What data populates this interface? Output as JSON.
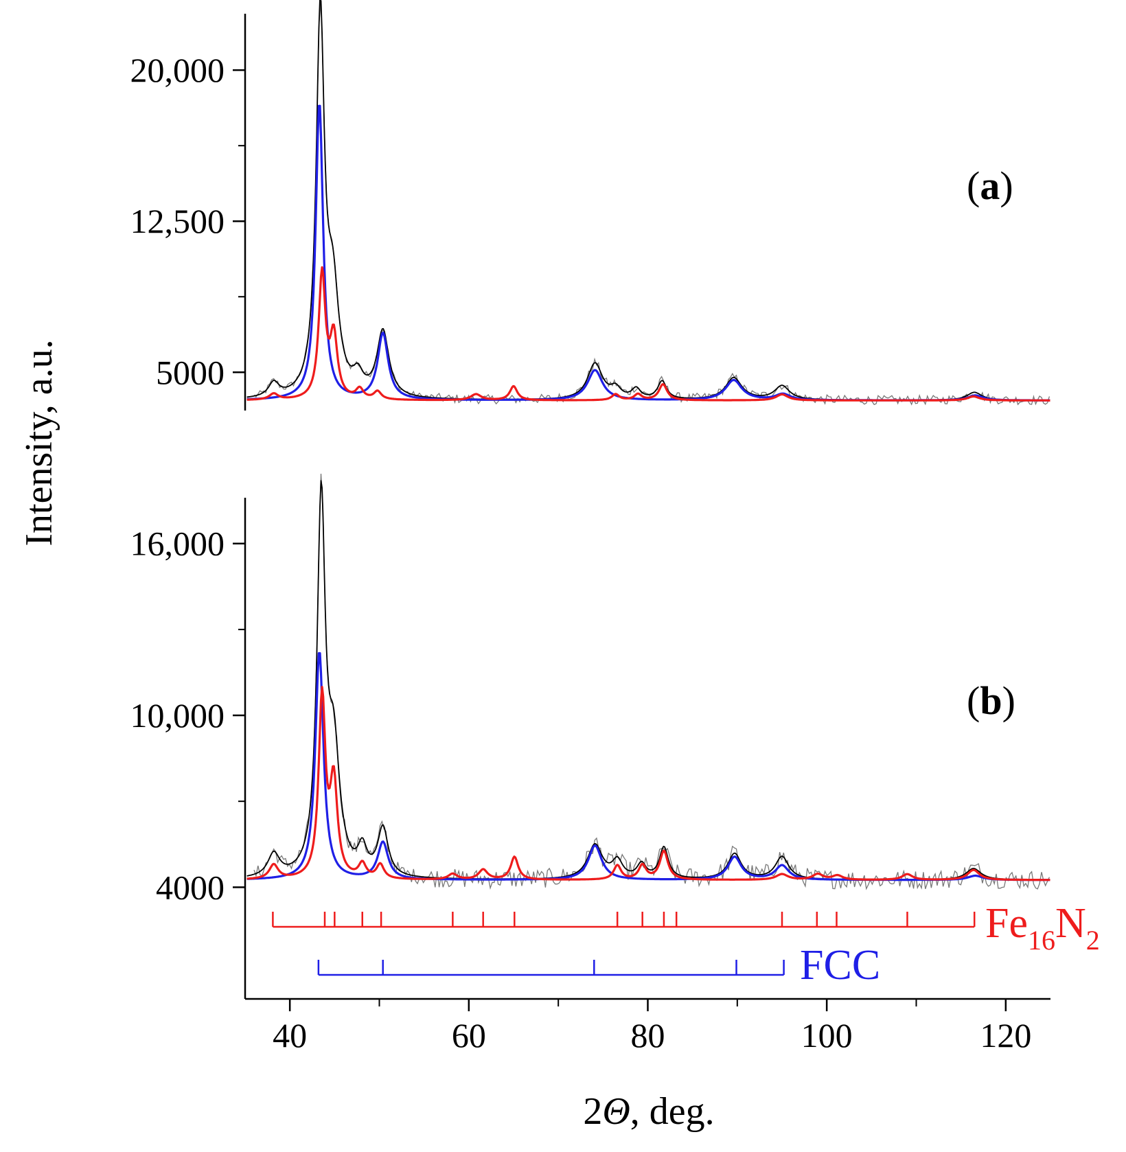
{
  "chart_data": {
    "type": "line",
    "xlabel_prefix": "2",
    "xlabel_symbol": "Θ",
    "xlabel_suffix": ", deg.",
    "ylabel": "Intensity, a.u.",
    "xlim": [
      35,
      125
    ],
    "x_ticks": [
      40,
      60,
      80,
      100,
      120
    ],
    "x_tick_labels": [
      "40",
      "60",
      "80",
      "100",
      "120"
    ],
    "colors": {
      "observed": "#000000",
      "noise": "#777777",
      "fcc": "#1f1fe6",
      "fe16n2": "#ee1c1c"
    },
    "panels": [
      {
        "id": "a",
        "label_open": "(",
        "label_letter": "a",
        "label_close": ")",
        "ylim": [
          3100,
          22800
        ],
        "y_ticks": [
          5000,
          12500,
          20000
        ],
        "y_tick_labels": [
          "5000",
          "12,500",
          "20,000"
        ],
        "baseline": 3600,
        "series": [
          {
            "name": "observed",
            "color": "#000000",
            "peaks": [
              [
                38.2,
                700,
                0.7
              ],
              [
                43.4,
                18800,
                0.55
              ],
              [
                44.8,
                5000,
                0.8
              ],
              [
                47.6,
                900,
                0.7
              ],
              [
                50.4,
                3300,
                0.8
              ],
              [
                74.1,
                1800,
                1.0
              ],
              [
                76.4,
                500,
                0.7
              ],
              [
                78.7,
                500,
                0.6
              ],
              [
                81.6,
                900,
                0.6
              ],
              [
                89.6,
                1100,
                1.1
              ],
              [
                95.0,
                700,
                1.0
              ],
              [
                116.5,
                400,
                1.0
              ]
            ]
          },
          {
            "name": "FCC",
            "color": "#1f1fe6",
            "peaks": [
              [
                43.3,
                14800,
                0.5
              ],
              [
                50.4,
                3300,
                0.7
              ],
              [
                74.1,
                1500,
                1.0
              ],
              [
                89.6,
                1000,
                1.1
              ],
              [
                95.1,
                300,
                1.0
              ],
              [
                116.6,
                250,
                1.0
              ]
            ]
          },
          {
            "name": "Fe16N2",
            "color": "#ee1c1c",
            "peaks": [
              [
                38.2,
                300,
                0.6
              ],
              [
                43.6,
                6200,
                0.45
              ],
              [
                44.9,
                3100,
                0.5
              ],
              [
                47.8,
                500,
                0.5
              ],
              [
                49.8,
                400,
                0.5
              ],
              [
                60.8,
                300,
                0.7
              ],
              [
                65.0,
                700,
                0.5
              ],
              [
                76.4,
                300,
                0.5
              ],
              [
                78.9,
                300,
                0.5
              ],
              [
                81.7,
                800,
                0.55
              ],
              [
                95.0,
                300,
                0.8
              ],
              [
                116.4,
                200,
                0.8
              ]
            ]
          }
        ]
      },
      {
        "id": "b",
        "label_open": "(",
        "label_letter": "b",
        "label_close": ")",
        "ylim": [
          100,
          17600
        ],
        "y_ticks": [
          4000,
          10000,
          16000
        ],
        "y_tick_labels": [
          "4000",
          "10,000",
          "16,000"
        ],
        "baseline": 4250,
        "series": [
          {
            "name": "observed",
            "color": "#000000",
            "peaks": [
              [
                38.2,
                800,
                0.8
              ],
              [
                43.5,
                12900,
                0.55
              ],
              [
                44.9,
                4200,
                0.8
              ],
              [
                48.1,
                900,
                0.6
              ],
              [
                50.4,
                1700,
                0.7
              ],
              [
                74.1,
                1200,
                1.0
              ],
              [
                76.6,
                600,
                0.7
              ],
              [
                79.3,
                500,
                0.6
              ],
              [
                81.8,
                1100,
                0.6
              ],
              [
                89.7,
                900,
                0.9
              ],
              [
                95.0,
                800,
                0.9
              ],
              [
                116.4,
                400,
                1.0
              ]
            ]
          },
          {
            "name": "FCC",
            "color": "#1f1fe6",
            "peaks": [
              [
                43.3,
                8000,
                0.55
              ],
              [
                50.4,
                1300,
                0.7
              ],
              [
                74.1,
                1200,
                0.9
              ],
              [
                89.7,
                800,
                0.9
              ],
              [
                95.0,
                500,
                0.9
              ],
              [
                116.6,
                150,
                1.0
              ]
            ]
          },
          {
            "name": "Fe16N2",
            "color": "#ee1c1c",
            "peaks": [
              [
                38.2,
                500,
                0.6
              ],
              [
                43.6,
                6300,
                0.45
              ],
              [
                44.9,
                3300,
                0.5
              ],
              [
                48.1,
                500,
                0.5
              ],
              [
                50.1,
                500,
                0.5
              ],
              [
                58.2,
                200,
                0.6
              ],
              [
                61.6,
                350,
                0.6
              ],
              [
                65.1,
                800,
                0.5
              ],
              [
                76.6,
                500,
                0.5
              ],
              [
                79.4,
                500,
                0.5
              ],
              [
                81.8,
                1000,
                0.55
              ],
              [
                95.0,
                200,
                0.8
              ],
              [
                99.0,
                200,
                0.7
              ],
              [
                101.2,
                150,
                0.7
              ],
              [
                109.0,
                200,
                0.7
              ],
              [
                116.4,
                350,
                0.8
              ]
            ]
          }
        ]
      }
    ],
    "reference_markers": [
      {
        "name": "Fe16N2",
        "label_base_1": "Fe",
        "label_sub_1": "16",
        "label_base_2": "N",
        "label_sub_2": "2",
        "color": "#ee1c1c",
        "positions": [
          38.1,
          43.9,
          45.0,
          48.1,
          50.2,
          58.2,
          61.6,
          65.1,
          76.6,
          79.4,
          81.8,
          83.2,
          95.0,
          98.9,
          101.1,
          109.0,
          116.5
        ]
      },
      {
        "name": "FCC",
        "label": "FCC",
        "color": "#1f1fe6",
        "positions": [
          43.2,
          50.4,
          74.0,
          89.9,
          95.2
        ]
      }
    ]
  }
}
